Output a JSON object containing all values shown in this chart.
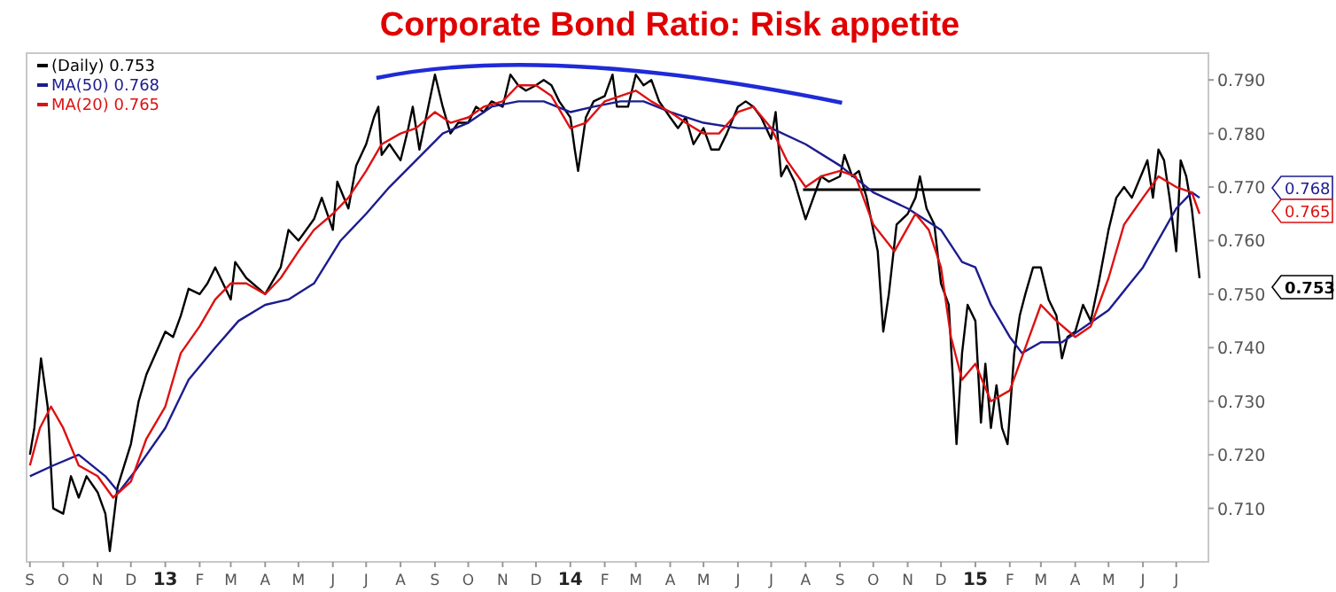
{
  "chart_data": {
    "type": "line",
    "title": "Corporate Bond Ratio: Risk appetite",
    "xlim": [
      "2012-08-29",
      "2015-07-30"
    ],
    "xticks": [
      {
        "value": "2012-09",
        "label": "S"
      },
      {
        "value": "2012-10",
        "label": "O"
      },
      {
        "value": "2012-11",
        "label": "N"
      },
      {
        "value": "2012-12",
        "label": "D"
      },
      {
        "value": "2013-01",
        "label": "13"
      },
      {
        "value": "2013-02",
        "label": "F"
      },
      {
        "value": "2013-03",
        "label": "M"
      },
      {
        "value": "2013-04",
        "label": "A"
      },
      {
        "value": "2013-05",
        "label": "M"
      },
      {
        "value": "2013-06",
        "label": "J"
      },
      {
        "value": "2013-07",
        "label": "J"
      },
      {
        "value": "2013-08",
        "label": "A"
      },
      {
        "value": "2013-09",
        "label": "S"
      },
      {
        "value": "2013-10",
        "label": "O"
      },
      {
        "value": "2013-11",
        "label": "N"
      },
      {
        "value": "2013-12",
        "label": "D"
      },
      {
        "value": "2014-01",
        "label": "14"
      },
      {
        "value": "2014-02",
        "label": "F"
      },
      {
        "value": "2014-03",
        "label": "M"
      },
      {
        "value": "2014-04",
        "label": "A"
      },
      {
        "value": "2014-05",
        "label": "M"
      },
      {
        "value": "2014-06",
        "label": "J"
      },
      {
        "value": "2014-07",
        "label": "J"
      },
      {
        "value": "2014-08",
        "label": "A"
      },
      {
        "value": "2014-09",
        "label": "S"
      },
      {
        "value": "2014-10",
        "label": "O"
      },
      {
        "value": "2014-11",
        "label": "N"
      },
      {
        "value": "2014-12",
        "label": "D"
      },
      {
        "value": "2015-01",
        "label": "15"
      },
      {
        "value": "2015-02",
        "label": "F"
      },
      {
        "value": "2015-03",
        "label": "M"
      },
      {
        "value": "2015-04",
        "label": "A"
      },
      {
        "value": "2015-05",
        "label": "M"
      },
      {
        "value": "2015-06",
        "label": "J"
      },
      {
        "value": "2015-07",
        "label": "J"
      }
    ],
    "ylim": [
      0.7,
      0.795
    ],
    "yticks": [
      {
        "value": 0.71,
        "label": "0.710"
      },
      {
        "value": 0.72,
        "label": "0.720"
      },
      {
        "value": 0.73,
        "label": "0.730"
      },
      {
        "value": 0.74,
        "label": "0.740"
      },
      {
        "value": 0.75,
        "label": "0.750"
      },
      {
        "value": 0.76,
        "label": "0.760"
      },
      {
        "value": 0.77,
        "label": "0.770"
      },
      {
        "value": 0.78,
        "label": "0.780"
      },
      {
        "value": 0.79,
        "label": "0.790"
      }
    ],
    "grid": false,
    "legend": "top left",
    "annotations": [
      "0.768",
      "0.765",
      "0.753"
    ],
    "series": [
      {
        "name": "(Daily) 0.753",
        "color": "#000000",
        "x": [
          "2012-09-01",
          "2012-09-05",
          "2012-09-11",
          "2012-09-17",
          "2012-09-22",
          "2012-10-01",
          "2012-10-08",
          "2012-10-15",
          "2012-10-22",
          "2012-11-01",
          "2012-11-08",
          "2012-11-12",
          "2012-11-19",
          "2012-12-01",
          "2012-12-08",
          "2012-12-15",
          "2013-01-01",
          "2013-01-08",
          "2013-01-15",
          "2013-01-22",
          "2013-02-01",
          "2013-02-08",
          "2013-02-15",
          "2013-02-22",
          "2013-03-01",
          "2013-03-05",
          "2013-03-15",
          "2013-04-01",
          "2013-04-15",
          "2013-04-22",
          "2013-05-01",
          "2013-05-15",
          "2013-05-22",
          "2013-06-01",
          "2013-06-05",
          "2013-06-15",
          "2013-06-22",
          "2013-07-01",
          "2013-07-08",
          "2013-07-12",
          "2013-07-15",
          "2013-07-22",
          "2013-08-01",
          "2013-08-08",
          "2013-08-12",
          "2013-08-18",
          "2013-09-01",
          "2013-09-08",
          "2013-09-15",
          "2013-09-22",
          "2013-10-01",
          "2013-10-08",
          "2013-10-15",
          "2013-10-22",
          "2013-11-01",
          "2013-11-08",
          "2013-11-15",
          "2013-11-22",
          "2013-12-01",
          "2013-12-08",
          "2013-12-15",
          "2013-12-22",
          "2014-01-01",
          "2014-01-05",
          "2014-01-08",
          "2014-01-15",
          "2014-01-22",
          "2014-02-01",
          "2014-02-08",
          "2014-02-12",
          "2014-02-22",
          "2014-03-01",
          "2014-03-08",
          "2014-03-15",
          "2014-03-22",
          "2014-04-01",
          "2014-04-08",
          "2014-04-15",
          "2014-04-22",
          "2014-05-01",
          "2014-05-08",
          "2014-05-15",
          "2014-05-22",
          "2014-06-01",
          "2014-06-08",
          "2014-06-15",
          "2014-06-22",
          "2014-07-01",
          "2014-07-05",
          "2014-07-10",
          "2014-07-15",
          "2014-07-22",
          "2014-08-01",
          "2014-08-08",
          "2014-08-15",
          "2014-08-22",
          "2014-09-01",
          "2014-09-05",
          "2014-09-12",
          "2014-09-18",
          "2014-09-25",
          "2014-10-01",
          "2014-10-05",
          "2014-10-10",
          "2014-10-15",
          "2014-10-22",
          "2014-11-01",
          "2014-11-08",
          "2014-11-12",
          "2014-11-18",
          "2014-11-25",
          "2014-12-01",
          "2014-12-08",
          "2014-12-15",
          "2014-12-20",
          "2014-12-25",
          "2015-01-01",
          "2015-01-06",
          "2015-01-10",
          "2015-01-15",
          "2015-01-20",
          "2015-01-25",
          "2015-01-30",
          "2015-02-05",
          "2015-02-10",
          "2015-02-15",
          "2015-02-22",
          "2015-03-01",
          "2015-03-08",
          "2015-03-15",
          "2015-03-20",
          "2015-03-25",
          "2015-04-01",
          "2015-04-08",
          "2015-04-15",
          "2015-04-22",
          "2015-05-01",
          "2015-05-08",
          "2015-05-15",
          "2015-05-22",
          "2015-06-01",
          "2015-06-05",
          "2015-06-10",
          "2015-06-15",
          "2015-06-20",
          "2015-06-25",
          "2015-07-01",
          "2015-07-05",
          "2015-07-10",
          "2015-07-15",
          "2015-07-22"
        ],
        "values": [
          0.72,
          0.725,
          0.738,
          0.729,
          0.71,
          0.709,
          0.716,
          0.712,
          0.716,
          0.713,
          0.709,
          0.702,
          0.714,
          0.722,
          0.73,
          0.735,
          0.743,
          0.742,
          0.746,
          0.751,
          0.75,
          0.752,
          0.755,
          0.752,
          0.749,
          0.756,
          0.753,
          0.75,
          0.755,
          0.762,
          0.76,
          0.764,
          0.768,
          0.762,
          0.771,
          0.766,
          0.774,
          0.778,
          0.783,
          0.785,
          0.776,
          0.778,
          0.775,
          0.781,
          0.785,
          0.777,
          0.791,
          0.785,
          0.78,
          0.782,
          0.782,
          0.785,
          0.784,
          0.786,
          0.785,
          0.791,
          0.789,
          0.788,
          0.789,
          0.79,
          0.789,
          0.786,
          0.783,
          0.777,
          0.773,
          0.783,
          0.786,
          0.787,
          0.791,
          0.785,
          0.785,
          0.791,
          0.789,
          0.79,
          0.786,
          0.783,
          0.781,
          0.783,
          0.778,
          0.781,
          0.777,
          0.777,
          0.78,
          0.785,
          0.786,
          0.785,
          0.783,
          0.779,
          0.784,
          0.772,
          0.774,
          0.771,
          0.764,
          0.768,
          0.772,
          0.771,
          0.772,
          0.776,
          0.772,
          0.773,
          0.768,
          0.762,
          0.758,
          0.743,
          0.75,
          0.763,
          0.765,
          0.768,
          0.772,
          0.766,
          0.763,
          0.752,
          0.748,
          0.722,
          0.739,
          0.748,
          0.745,
          0.726,
          0.737,
          0.725,
          0.733,
          0.725,
          0.722,
          0.739,
          0.746,
          0.75,
          0.755,
          0.755,
          0.749,
          0.746,
          0.738,
          0.742,
          0.743,
          0.748,
          0.745,
          0.752,
          0.762,
          0.768,
          0.77,
          0.768,
          0.773,
          0.775,
          0.768,
          0.777,
          0.775,
          0.768,
          0.758,
          0.775,
          0.772,
          0.766,
          0.753
        ]
      },
      {
        "name": "MA(50) 0.768",
        "color": "#1c1c8f",
        "x": [
          "2012-09-01",
          "2012-09-22",
          "2012-10-15",
          "2012-11-08",
          "2012-11-20",
          "2012-12-05",
          "2013-01-01",
          "2013-01-22",
          "2013-02-15",
          "2013-03-08",
          "2013-04-01",
          "2013-04-22",
          "2013-05-15",
          "2013-06-08",
          "2013-07-01",
          "2013-07-22",
          "2013-08-15",
          "2013-09-08",
          "2013-10-01",
          "2013-10-22",
          "2013-11-15",
          "2013-12-08",
          "2014-01-01",
          "2014-01-22",
          "2014-02-15",
          "2014-03-08",
          "2014-04-01",
          "2014-05-01",
          "2014-06-01",
          "2014-07-01",
          "2014-08-01",
          "2014-09-01",
          "2014-10-01",
          "2014-11-01",
          "2014-12-01",
          "2014-12-20",
          "2015-01-01",
          "2015-01-15",
          "2015-02-01",
          "2015-02-12",
          "2015-03-01",
          "2015-03-20",
          "2015-04-10",
          "2015-05-01",
          "2015-06-01",
          "2015-07-01",
          "2015-07-15",
          "2015-07-22"
        ],
        "values": [
          0.716,
          0.718,
          0.72,
          0.716,
          0.713,
          0.717,
          0.725,
          0.734,
          0.74,
          0.745,
          0.748,
          0.749,
          0.752,
          0.76,
          0.765,
          0.77,
          0.775,
          0.78,
          0.782,
          0.785,
          0.786,
          0.786,
          0.784,
          0.785,
          0.786,
          0.786,
          0.784,
          0.782,
          0.781,
          0.781,
          0.778,
          0.774,
          0.769,
          0.766,
          0.762,
          0.756,
          0.755,
          0.748,
          0.742,
          0.739,
          0.741,
          0.741,
          0.744,
          0.747,
          0.755,
          0.766,
          0.769,
          0.768
        ]
      },
      {
        "name": "MA(20) 0.765",
        "color": "#dd1111",
        "x": [
          "2012-09-01",
          "2012-09-10",
          "2012-09-20",
          "2012-10-01",
          "2012-10-15",
          "2012-11-01",
          "2012-11-15",
          "2012-12-01",
          "2012-12-15",
          "2013-01-01",
          "2013-01-15",
          "2013-02-01",
          "2013-02-15",
          "2013-03-01",
          "2013-03-15",
          "2013-04-01",
          "2013-04-15",
          "2013-05-01",
          "2013-05-15",
          "2013-06-01",
          "2013-06-15",
          "2013-07-01",
          "2013-07-15",
          "2013-08-01",
          "2013-08-15",
          "2013-09-01",
          "2013-09-15",
          "2013-10-01",
          "2013-10-15",
          "2013-11-01",
          "2013-11-15",
          "2013-12-01",
          "2013-12-15",
          "2014-01-01",
          "2014-01-15",
          "2014-02-01",
          "2014-02-15",
          "2014-03-01",
          "2014-03-15",
          "2014-04-01",
          "2014-04-15",
          "2014-05-01",
          "2014-05-15",
          "2014-06-01",
          "2014-06-15",
          "2014-07-01",
          "2014-07-15",
          "2014-08-01",
          "2014-08-15",
          "2014-09-01",
          "2014-09-15",
          "2014-10-01",
          "2014-10-20",
          "2014-11-08",
          "2014-11-20",
          "2014-12-01",
          "2014-12-10",
          "2014-12-20",
          "2015-01-01",
          "2015-01-15",
          "2015-02-01",
          "2015-02-15",
          "2015-03-01",
          "2015-03-15",
          "2015-04-01",
          "2015-04-15",
          "2015-05-01",
          "2015-05-15",
          "2015-06-01",
          "2015-06-15",
          "2015-07-01",
          "2015-07-15",
          "2015-07-22"
        ],
        "values": [
          0.718,
          0.725,
          0.729,
          0.725,
          0.718,
          0.716,
          0.712,
          0.715,
          0.723,
          0.729,
          0.739,
          0.744,
          0.749,
          0.752,
          0.752,
          0.75,
          0.753,
          0.758,
          0.762,
          0.765,
          0.768,
          0.773,
          0.778,
          0.78,
          0.781,
          0.784,
          0.782,
          0.783,
          0.785,
          0.786,
          0.789,
          0.789,
          0.787,
          0.781,
          0.782,
          0.786,
          0.787,
          0.788,
          0.786,
          0.784,
          0.782,
          0.78,
          0.78,
          0.784,
          0.785,
          0.781,
          0.775,
          0.77,
          0.772,
          0.773,
          0.772,
          0.763,
          0.758,
          0.765,
          0.762,
          0.755,
          0.742,
          0.734,
          0.737,
          0.73,
          0.732,
          0.74,
          0.748,
          0.745,
          0.742,
          0.744,
          0.753,
          0.763,
          0.768,
          0.772,
          0.77,
          0.769,
          0.765
        ]
      }
    ]
  }
}
